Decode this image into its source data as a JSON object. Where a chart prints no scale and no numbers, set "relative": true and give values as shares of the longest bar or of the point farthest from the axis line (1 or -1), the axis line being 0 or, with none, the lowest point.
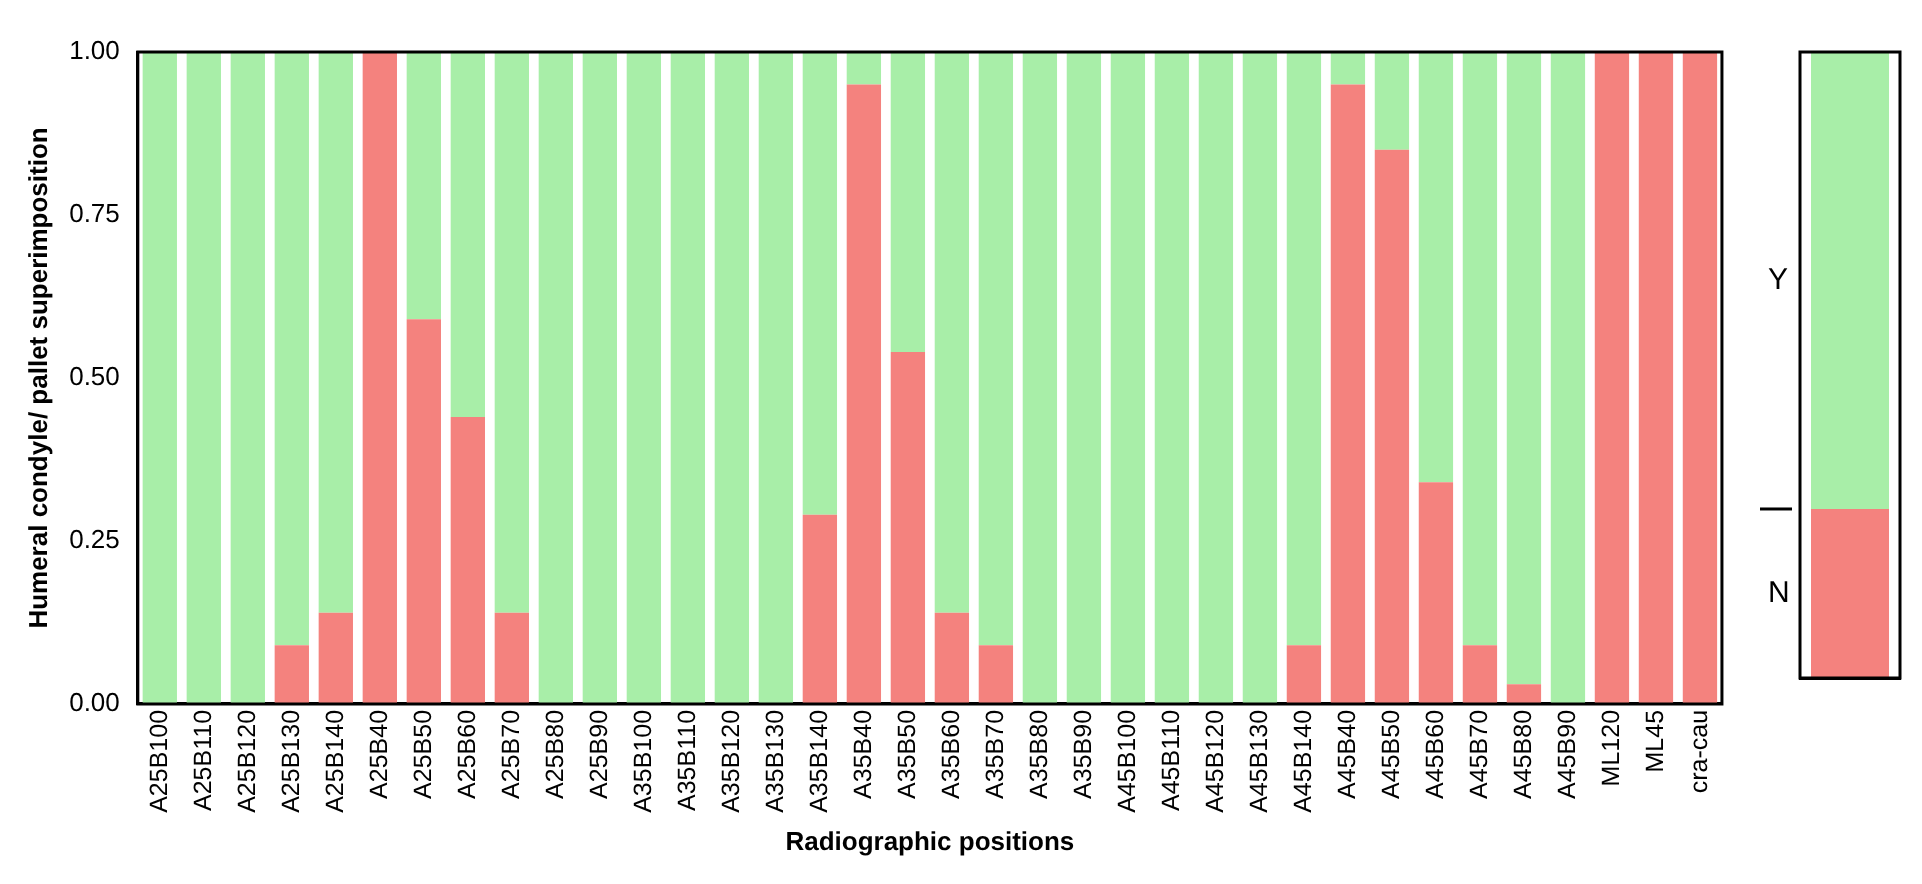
{
  "chart_data": [
    {
      "type": "bar",
      "stacked": true,
      "xlabel": "Radiographic positions",
      "ylabel": "Humeral condyle/ pallet superimposition",
      "categories": [
        "A25B100",
        "A25B110",
        "A25B120",
        "A25B130",
        "A25B140",
        "A25B40",
        "A25B50",
        "A25B60",
        "A25B70",
        "A25B80",
        "A25B90",
        "A35B100",
        "A35B110",
        "A35B120",
        "A35B130",
        "A35B140",
        "A35B40",
        "A35B50",
        "A35B60",
        "A35B70",
        "A35B80",
        "A35B90",
        "A45B100",
        "A45B110",
        "A45B120",
        "A45B130",
        "A45B140",
        "A45B40",
        "A45B50",
        "A45B60",
        "A45B70",
        "A45B80",
        "A45B90",
        "ML120",
        "ML45",
        "cra-cau"
      ],
      "series": [
        {
          "color": "#f4827e",
          "values": [
            0,
            0,
            0,
            0.09,
            0.14,
            1,
            0.59,
            0.44,
            0.14,
            0,
            0,
            0,
            0,
            0,
            0,
            0.29,
            0.95,
            0.54,
            0.14,
            0.09,
            0,
            0,
            0,
            0,
            0,
            0,
            0.09,
            0.95,
            0.85,
            0.34,
            0.09,
            0.03,
            0,
            1,
            1,
            1
          ]
        },
        {
          "color": "#a8eea8",
          "values": [
            1,
            1,
            1,
            0.91,
            0.86,
            0,
            0.41,
            0.56,
            0.86,
            1,
            1,
            1,
            1,
            1,
            1,
            0.71,
            0.05,
            0.46,
            0.86,
            0.91,
            1,
            1,
            1,
            1,
            1,
            1,
            0.91,
            0.05,
            0.15,
            0.66,
            0.91,
            0.97,
            1,
            0,
            0,
            0
          ]
        }
      ],
      "ylim": [
        0,
        1
      ],
      "yticks": [
        {
          "value": 0,
          "label": "0.00"
        },
        {
          "value": 0.25,
          "label": "0.25"
        },
        {
          "value": 0.5,
          "label": "0.50"
        },
        {
          "value": 0.75,
          "label": "0.75"
        },
        {
          "value": 1,
          "label": "1.00"
        }
      ],
      "grid": false,
      "legend": false
    },
    {
      "type": "bar",
      "stacked": true,
      "categories": [
        null
      ],
      "series": [
        {
          "name": "N",
          "color": "#f4827e",
          "values": [
            0.27
          ]
        },
        {
          "name": "Y",
          "color": "#a8eea8",
          "values": [
            0.73
          ]
        }
      ],
      "relative": true,
      "grid": false
    }
  ]
}
